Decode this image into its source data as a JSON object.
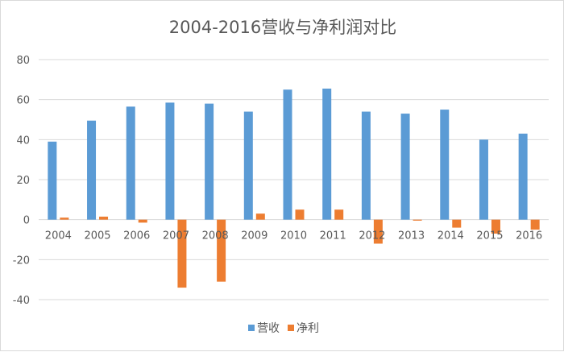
{
  "chart_data": {
    "type": "bar",
    "title": "2004-2016营收与净利润对比",
    "categories": [
      "2004",
      "2005",
      "2006",
      "2007",
      "2008",
      "2009",
      "2010",
      "2011",
      "2012",
      "2013",
      "2014",
      "2015",
      "2016"
    ],
    "series": [
      {
        "name": "营收",
        "color": "#5b9bd5",
        "values": [
          39,
          49.5,
          56.5,
          58.5,
          58,
          54,
          65,
          65.5,
          54,
          53,
          55,
          40,
          43
        ]
      },
      {
        "name": "净利",
        "color": "#ed7d31",
        "values": [
          1,
          1.5,
          -1.5,
          -34,
          -31,
          3,
          5,
          5,
          -12,
          -0.5,
          -4,
          -7,
          -5
        ]
      }
    ],
    "ylim": [
      -40,
      80
    ],
    "yticks": [
      "80",
      "60",
      "40",
      "20",
      "0",
      "-20",
      "-40"
    ],
    "grid": true,
    "legend": "bottom"
  }
}
